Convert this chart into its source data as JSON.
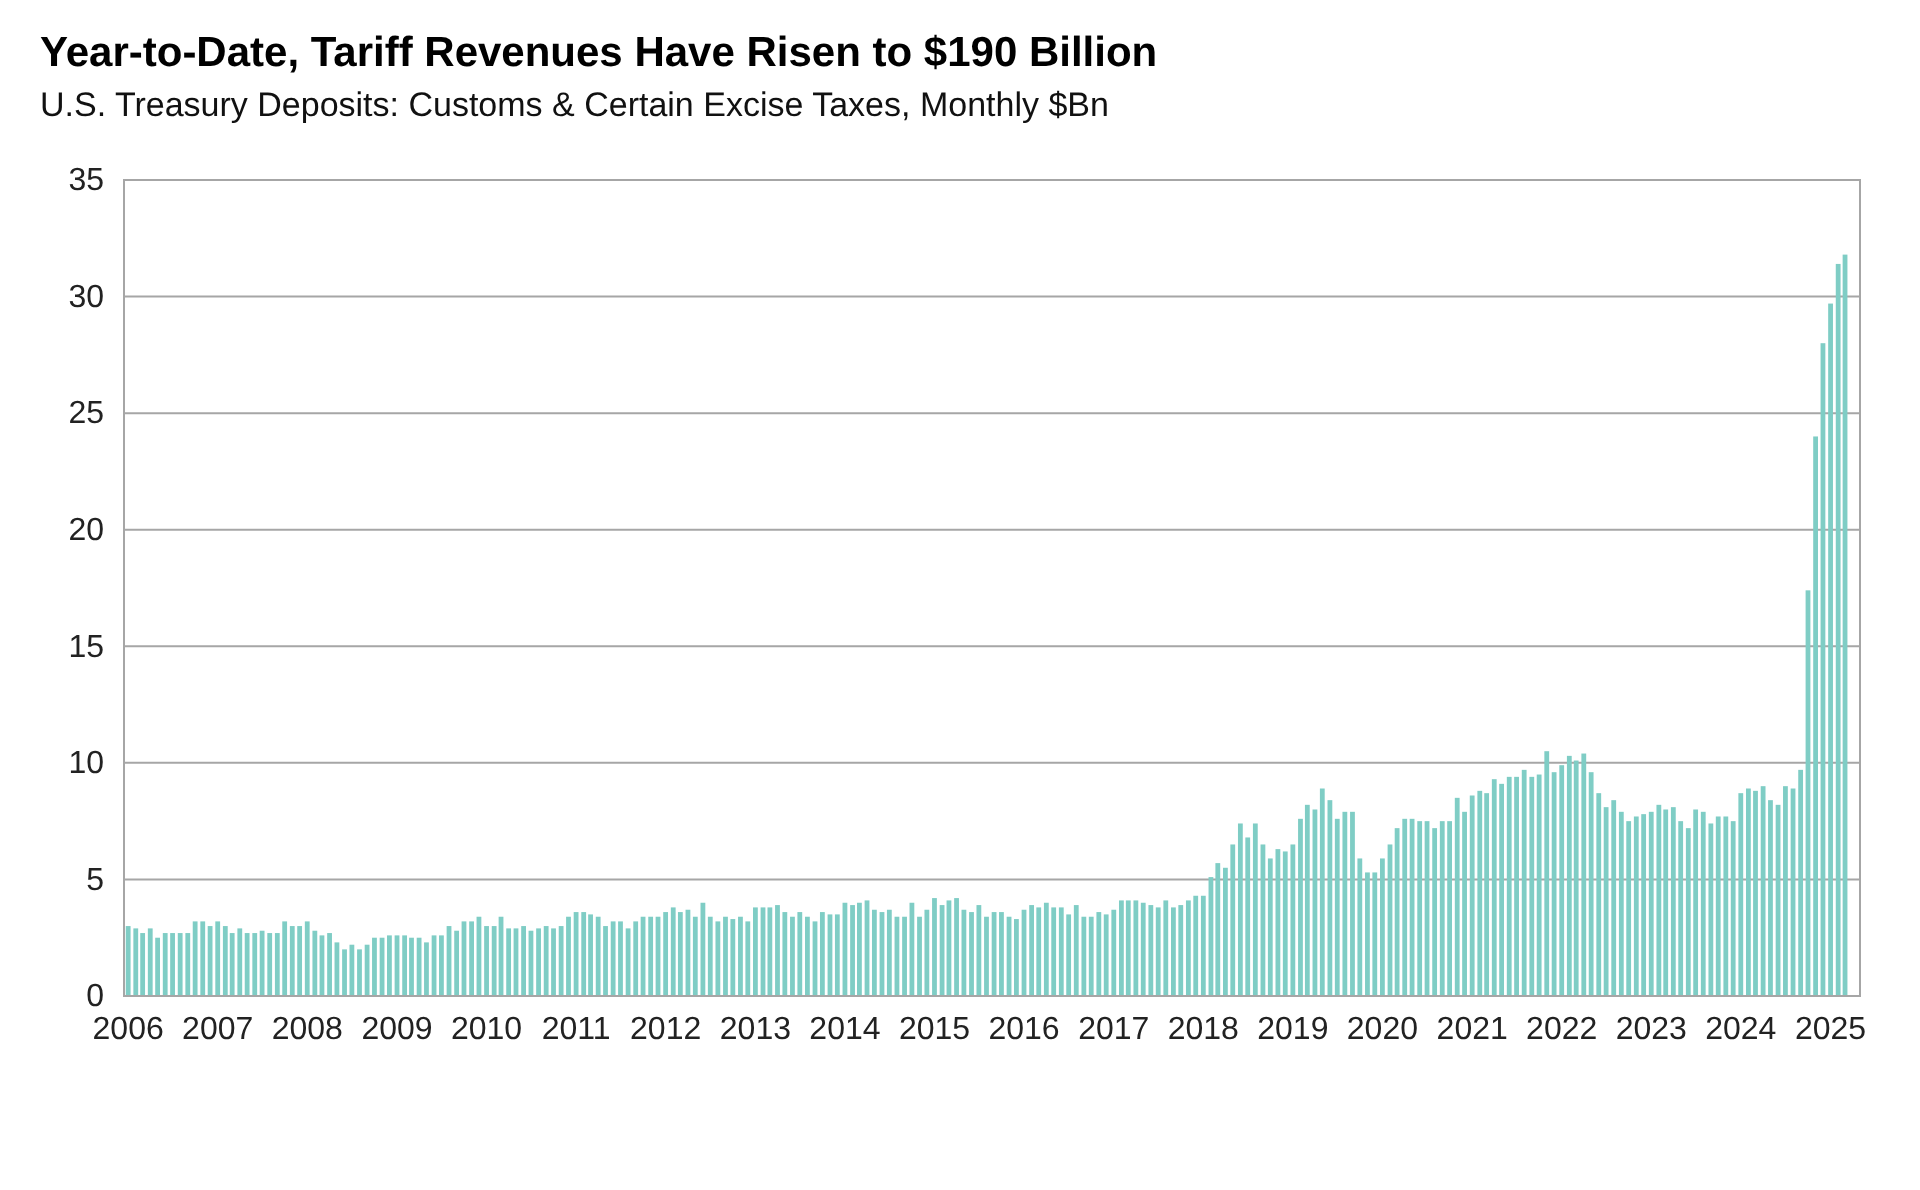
{
  "chart_data": {
    "type": "bar",
    "title": "Year-to-Date, Tariff Revenues Have Risen to $190 Billion",
    "subtitle": "U.S. Treasury Deposits: Customs & Certain Excise Taxes, Monthly $Bn",
    "color": "#7fcdc5",
    "grid": "y",
    "ylim": [
      0,
      35
    ],
    "yticks": [
      0,
      5,
      10,
      15,
      20,
      25,
      30,
      35
    ],
    "xlim": [
      "2005-12-15",
      "2025-05-01"
    ],
    "xticks": [
      "2006",
      "2007",
      "2008",
      "2009",
      "2010",
      "2011",
      "2012",
      "2013",
      "2014",
      "2015",
      "2016",
      "2017",
      "2018",
      "2019",
      "2020",
      "2021",
      "2022",
      "2023",
      "2024",
      "2025"
    ],
    "x": [
      "2006-01",
      "2006-02",
      "2006-03",
      "2006-04",
      "2006-05",
      "2006-06",
      "2006-07",
      "2006-08",
      "2006-09",
      "2006-10",
      "2006-11",
      "2006-12",
      "2007-01",
      "2007-02",
      "2007-03",
      "2007-04",
      "2007-05",
      "2007-06",
      "2007-07",
      "2007-08",
      "2007-09",
      "2007-10",
      "2007-11",
      "2007-12",
      "2008-01",
      "2008-02",
      "2008-03",
      "2008-04",
      "2008-05",
      "2008-06",
      "2008-07",
      "2008-08",
      "2008-09",
      "2008-10",
      "2008-11",
      "2008-12",
      "2009-01",
      "2009-02",
      "2009-03",
      "2009-04",
      "2009-05",
      "2009-06",
      "2009-07",
      "2009-08",
      "2009-09",
      "2009-10",
      "2009-11",
      "2009-12",
      "2010-01",
      "2010-02",
      "2010-03",
      "2010-04",
      "2010-05",
      "2010-06",
      "2010-07",
      "2010-08",
      "2010-09",
      "2010-10",
      "2010-11",
      "2010-12",
      "2011-01",
      "2011-02",
      "2011-03",
      "2011-04",
      "2011-05",
      "2011-06",
      "2011-07",
      "2011-08",
      "2011-09",
      "2011-10",
      "2011-11",
      "2011-12",
      "2012-01",
      "2012-02",
      "2012-03",
      "2012-04",
      "2012-05",
      "2012-06",
      "2012-07",
      "2012-08",
      "2012-09",
      "2012-10",
      "2012-11",
      "2012-12",
      "2013-01",
      "2013-02",
      "2013-03",
      "2013-04",
      "2013-05",
      "2013-06",
      "2013-07",
      "2013-08",
      "2013-09",
      "2013-10",
      "2013-11",
      "2013-12",
      "2014-01",
      "2014-02",
      "2014-03",
      "2014-04",
      "2014-05",
      "2014-06",
      "2014-07",
      "2014-08",
      "2014-09",
      "2014-10",
      "2014-11",
      "2014-12",
      "2015-01",
      "2015-02",
      "2015-03",
      "2015-04",
      "2015-05",
      "2015-06",
      "2015-07",
      "2015-08",
      "2015-09",
      "2015-10",
      "2015-11",
      "2015-12",
      "2016-01",
      "2016-02",
      "2016-03",
      "2016-04",
      "2016-05",
      "2016-06",
      "2016-07",
      "2016-08",
      "2016-09",
      "2016-10",
      "2016-11",
      "2016-12",
      "2017-01",
      "2017-02",
      "2017-03",
      "2017-04",
      "2017-05",
      "2017-06",
      "2017-07",
      "2017-08",
      "2017-09",
      "2017-10",
      "2017-11",
      "2017-12",
      "2018-01",
      "2018-02",
      "2018-03",
      "2018-04",
      "2018-05",
      "2018-06",
      "2018-07",
      "2018-08",
      "2018-09",
      "2018-10",
      "2018-11",
      "2018-12",
      "2019-01",
      "2019-02",
      "2019-03",
      "2019-04",
      "2019-05",
      "2019-06",
      "2019-07",
      "2019-08",
      "2019-09",
      "2019-10",
      "2019-11",
      "2019-12",
      "2020-01",
      "2020-02",
      "2020-03",
      "2020-04",
      "2020-05",
      "2020-06",
      "2020-07",
      "2020-08",
      "2020-09",
      "2020-10",
      "2020-11",
      "2020-12",
      "2021-01",
      "2021-02",
      "2021-03",
      "2021-04",
      "2021-05",
      "2021-06",
      "2021-07",
      "2021-08",
      "2021-09",
      "2021-10",
      "2021-11",
      "2021-12",
      "2022-01",
      "2022-02",
      "2022-03",
      "2022-04",
      "2022-05",
      "2022-06",
      "2022-07",
      "2022-08",
      "2022-09",
      "2022-10",
      "2022-11",
      "2022-12",
      "2023-01",
      "2023-02",
      "2023-03",
      "2023-04",
      "2023-05",
      "2023-06",
      "2023-07",
      "2023-08",
      "2023-09",
      "2023-10",
      "2023-11",
      "2023-12",
      "2024-01",
      "2024-02",
      "2024-03",
      "2024-04",
      "2024-05",
      "2024-06",
      "2024-07",
      "2024-08",
      "2024-09",
      "2024-10",
      "2024-11",
      "2024-12",
      "2025-01",
      "2025-02",
      "2025-03"
    ],
    "values": [
      3.0,
      2.9,
      2.7,
      2.9,
      2.5,
      2.7,
      2.7,
      2.7,
      2.7,
      3.2,
      3.2,
      3.0,
      3.2,
      3.0,
      2.7,
      2.9,
      2.7,
      2.7,
      2.8,
      2.7,
      2.7,
      3.2,
      3.0,
      3.0,
      3.2,
      2.8,
      2.6,
      2.7,
      2.3,
      2.0,
      2.2,
      2.0,
      2.2,
      2.5,
      2.5,
      2.6,
      2.6,
      2.6,
      2.5,
      2.5,
      2.3,
      2.6,
      2.6,
      3.0,
      2.8,
      3.2,
      3.2,
      3.4,
      3.0,
      3.0,
      3.4,
      2.9,
      2.9,
      3.0,
      2.8,
      2.9,
      3.0,
      2.9,
      3.0,
      3.4,
      3.6,
      3.6,
      3.5,
      3.4,
      3.0,
      3.2,
      3.2,
      2.9,
      3.2,
      3.4,
      3.4,
      3.4,
      3.6,
      3.8,
      3.6,
      3.7,
      3.4,
      4.0,
      3.4,
      3.2,
      3.4,
      3.3,
      3.4,
      3.2,
      3.8,
      3.8,
      3.8,
      3.9,
      3.6,
      3.4,
      3.6,
      3.4,
      3.2,
      3.6,
      3.5,
      3.5,
      4.0,
      3.9,
      4.0,
      4.1,
      3.7,
      3.6,
      3.7,
      3.4,
      3.4,
      4.0,
      3.4,
      3.7,
      4.2,
      3.9,
      4.1,
      4.2,
      3.7,
      3.6,
      3.9,
      3.4,
      3.6,
      3.6,
      3.4,
      3.3,
      3.7,
      3.9,
      3.8,
      4.0,
      3.8,
      3.8,
      3.5,
      3.9,
      3.4,
      3.4,
      3.6,
      3.5,
      3.7,
      4.1,
      4.1,
      4.1,
      4.0,
      3.9,
      3.8,
      4.1,
      3.8,
      3.9,
      4.1,
      4.3,
      4.3,
      5.1,
      5.7,
      5.5,
      6.5,
      7.4,
      6.8,
      7.4,
      6.5,
      5.9,
      6.3,
      6.2,
      6.5,
      7.6,
      8.2,
      8.0,
      8.9,
      8.4,
      7.6,
      7.9,
      7.9,
      5.9,
      5.3,
      5.3,
      5.9,
      6.5,
      7.2,
      7.6,
      7.6,
      7.5,
      7.5,
      7.2,
      7.5,
      7.5,
      8.5,
      7.9,
      8.6,
      8.8,
      8.7,
      9.3,
      9.1,
      9.4,
      9.4,
      9.7,
      9.4,
      9.5,
      10.5,
      9.6,
      9.9,
      10.3,
      10.1,
      10.4,
      9.6,
      8.7,
      8.1,
      8.4,
      7.9,
      7.5,
      7.7,
      7.8,
      7.9,
      8.2,
      8.0,
      8.1,
      7.5,
      7.2,
      8.0,
      7.9,
      7.4,
      7.7,
      7.7,
      7.5,
      8.7,
      8.9,
      8.8,
      9.0,
      8.4,
      8.2,
      9.0,
      8.9,
      9.7,
      17.4,
      24.0,
      28.0,
      29.7,
      31.4,
      31.8
    ]
  }
}
